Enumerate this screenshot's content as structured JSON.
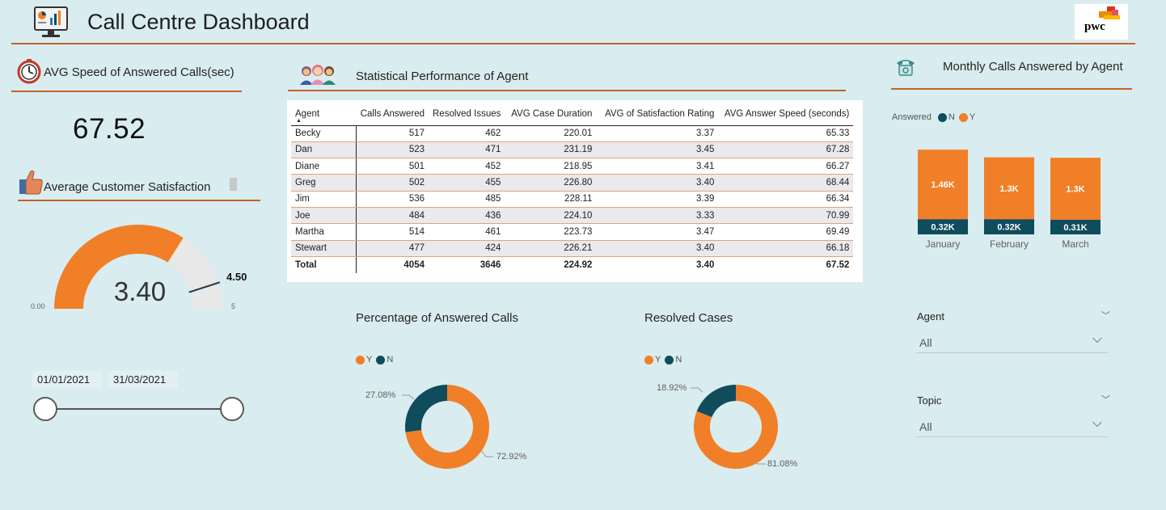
{
  "header": {
    "title": "Call Centre Dashboard",
    "logo_text": "pwc"
  },
  "speed_kpi": {
    "title": "AVG Speed of Answered Calls(sec)",
    "value": "67.52"
  },
  "satisfaction": {
    "title": "Average Customer Satisfaction",
    "gauge_value": 3.4,
    "gauge_label": "3.40",
    "min_label": "0.00",
    "max_label": "5",
    "target_label": "4.50",
    "gauge_min": 0,
    "gauge_max": 5,
    "gauge_target": 4.5,
    "fill_color": "#f07f27",
    "empty_color": "#e8e8e8"
  },
  "date_slicer": {
    "start": "01/01/2021",
    "end": "31/03/2021"
  },
  "agent_table": {
    "title": "Statistical Performance of Agent",
    "columns": [
      "Agent",
      "Calls Answered",
      "Resolved Issues",
      "AVG Case Duration",
      "AVG of Satisfaction Rating",
      "AVG Answer Speed (seconds)"
    ],
    "rows": [
      [
        "Becky",
        "517",
        "462",
        "220.01",
        "3.37",
        "65.33"
      ],
      [
        "Dan",
        "523",
        "471",
        "231.19",
        "3.45",
        "67.28"
      ],
      [
        "Diane",
        "501",
        "452",
        "218.95",
        "3.41",
        "66.27"
      ],
      [
        "Greg",
        "502",
        "455",
        "226.80",
        "3.40",
        "68.44"
      ],
      [
        "Jim",
        "536",
        "485",
        "228.11",
        "3.39",
        "66.34"
      ],
      [
        "Joe",
        "484",
        "436",
        "224.10",
        "3.33",
        "70.99"
      ],
      [
        "Martha",
        "514",
        "461",
        "223.73",
        "3.47",
        "69.49"
      ],
      [
        "Stewart",
        "477",
        "424",
        "226.21",
        "3.40",
        "66.18"
      ]
    ],
    "total": [
      "Total",
      "4054",
      "3646",
      "224.92",
      "3.40",
      "67.52"
    ]
  },
  "answered_donut": {
    "title": "Percentage of Answered Calls",
    "legend": [
      {
        "label": "Y",
        "color": "#f07f27"
      },
      {
        "label": "N",
        "color": "#0f4c5c"
      }
    ],
    "y_pct": 72.92,
    "n_pct": 27.08,
    "y_label": "72.92%",
    "n_label": "27.08%"
  },
  "resolved_donut": {
    "title": "Resolved Cases",
    "legend": [
      {
        "label": "Y",
        "color": "#f07f27"
      },
      {
        "label": "N",
        "color": "#0f4c5c"
      }
    ],
    "y_pct": 81.08,
    "n_pct": 18.92,
    "y_label": "81.08%",
    "n_label": "18.92%"
  },
  "monthly_chart": {
    "title": "Monthly Calls Answered by Agent",
    "legend_title": "Answered",
    "legend": [
      {
        "label": "N",
        "color": "#0f4c5c"
      },
      {
        "label": "Y",
        "color": "#f07f27"
      }
    ]
  },
  "chart_data": {
    "type": "bar",
    "stacked": true,
    "categories": [
      "January",
      "February",
      "March"
    ],
    "series": [
      {
        "name": "N",
        "values": [
          320,
          320,
          310
        ],
        "labels": [
          "0.32K",
          "0.32K",
          "0.31K"
        ],
        "color": "#0f4c5c"
      },
      {
        "name": "Y",
        "values": [
          1460,
          1300,
          1300
        ],
        "labels": [
          "1.46K",
          "1.3K",
          "1.3K"
        ],
        "color": "#f07f27"
      }
    ],
    "title": "Monthly Calls Answered by Agent",
    "legend_title": "Answered"
  },
  "slicers": {
    "agent": {
      "title": "Agent",
      "value": "All"
    },
    "topic": {
      "title": "Topic",
      "value": "All"
    }
  }
}
